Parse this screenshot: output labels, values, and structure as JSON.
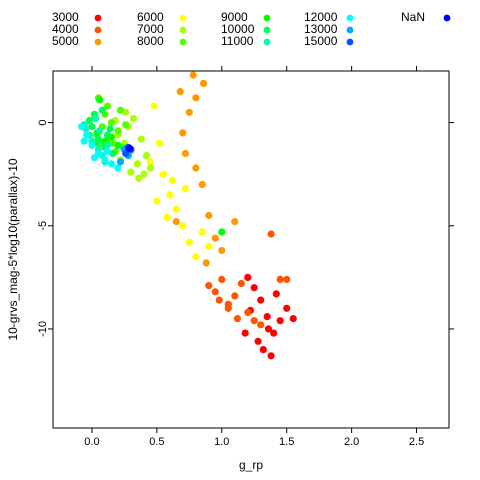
{
  "chart_data": {
    "type": "scatter",
    "xlabel": "g_rp",
    "ylabel": "10-grvs_mag-5*log10(parallax)-10",
    "xlim": [
      -0.3,
      2.75
    ],
    "ylim": [
      2.5,
      -14.8
    ],
    "x_ticks": [
      "0.0",
      "0.5",
      "1.0",
      "1.5",
      "2.0",
      "2.5"
    ],
    "y_ticks": [
      "0",
      "-5",
      "-10"
    ],
    "legend_position": "top",
    "series": [
      {
        "name": "3000",
        "color": "#FF0000",
        "points": [
          [
            1.3,
            -8.6
          ],
          [
            1.35,
            -9.4
          ],
          [
            1.4,
            -10.2
          ],
          [
            1.32,
            -11.0
          ],
          [
            1.38,
            -11.3
          ],
          [
            1.45,
            -9.6
          ],
          [
            1.5,
            -9.0
          ],
          [
            1.25,
            -8.0
          ],
          [
            1.2,
            -7.5
          ],
          [
            1.42,
            -8.3
          ],
          [
            1.28,
            -10.6
          ],
          [
            1.36,
            -10.0
          ],
          [
            1.55,
            -9.5
          ],
          [
            1.18,
            -10.2
          ],
          [
            1.22,
            -9.1
          ]
        ]
      },
      {
        "name": "4000",
        "color": "#FF5500",
        "points": [
          [
            1.0,
            -7.6
          ],
          [
            1.1,
            -8.4
          ],
          [
            1.2,
            -9.2
          ],
          [
            1.05,
            -9.0
          ],
          [
            0.95,
            -8.2
          ],
          [
            1.15,
            -7.8
          ],
          [
            1.25,
            -9.6
          ],
          [
            0.9,
            -7.9
          ],
          [
            1.05,
            -8.8
          ],
          [
            1.3,
            -9.8
          ],
          [
            1.12,
            -9.5
          ],
          [
            0.98,
            -8.6
          ],
          [
            1.45,
            -7.6
          ],
          [
            1.38,
            -5.4
          ],
          [
            1.5,
            -7.6
          ]
        ]
      },
      {
        "name": "5000",
        "color": "#FF9900",
        "points": [
          [
            0.7,
            -0.5
          ],
          [
            0.75,
            0.5
          ],
          [
            0.8,
            1.2
          ],
          [
            0.72,
            -1.5
          ],
          [
            0.85,
            -3.0
          ],
          [
            0.9,
            -4.5
          ],
          [
            0.95,
            -5.6
          ],
          [
            1.0,
            -6.2
          ],
          [
            0.78,
            2.3
          ],
          [
            0.86,
            1.9
          ],
          [
            0.8,
            -2.2
          ],
          [
            1.1,
            -4.8
          ],
          [
            0.65,
            -4.8
          ],
          [
            0.88,
            -6.8
          ],
          [
            0.68,
            1.5
          ]
        ]
      },
      {
        "name": "6000",
        "color": "#FFFF00",
        "points": [
          [
            0.55,
            -2.5
          ],
          [
            0.6,
            -3.5
          ],
          [
            0.65,
            -4.2
          ],
          [
            0.7,
            -5.0
          ],
          [
            0.75,
            -5.8
          ],
          [
            0.8,
            -6.5
          ],
          [
            0.5,
            -3.8
          ],
          [
            0.52,
            -1.0
          ],
          [
            0.58,
            -4.6
          ],
          [
            0.85,
            -5.3
          ],
          [
            0.48,
            0.8
          ],
          [
            0.62,
            -2.8
          ],
          [
            0.9,
            -6.0
          ],
          [
            0.45,
            -1.9
          ],
          [
            0.72,
            -3.2
          ]
        ]
      },
      {
        "name": "7000",
        "color": "#AAFF00",
        "points": [
          [
            0.2,
            -0.6
          ],
          [
            0.25,
            -1.0
          ],
          [
            0.3,
            -1.4
          ],
          [
            0.35,
            -2.0
          ],
          [
            0.4,
            -2.5
          ],
          [
            0.28,
            -0.2
          ],
          [
            0.32,
            0.2
          ],
          [
            0.38,
            -0.8
          ],
          [
            0.42,
            -1.6
          ],
          [
            0.22,
            -1.8
          ],
          [
            0.36,
            -2.7
          ],
          [
            0.18,
            0.1
          ],
          [
            0.45,
            -2.2
          ],
          [
            0.3,
            -2.4
          ],
          [
            0.26,
            0.5
          ]
        ]
      },
      {
        "name": "8000",
        "color": "#55FF00",
        "points": [
          [
            0.05,
            1.2
          ],
          [
            0.1,
            0.4
          ],
          [
            0.15,
            0.0
          ],
          [
            0.2,
            -0.4
          ],
          [
            0.12,
            -0.8
          ],
          [
            0.08,
            -0.2
          ],
          [
            0.16,
            -1.0
          ],
          [
            0.22,
            0.6
          ],
          [
            0.02,
            0.3
          ],
          [
            0.24,
            -1.2
          ],
          [
            0.12,
            0.8
          ],
          [
            0.04,
            -0.6
          ],
          [
            0.18,
            -1.4
          ],
          [
            0.26,
            -0.1
          ],
          [
            0.06,
            -1.1
          ]
        ]
      },
      {
        "name": "9000",
        "color": "#00FF00",
        "points": [
          [
            0.06,
            1.1
          ],
          [
            1.0,
            -5.3
          ],
          [
            0.15,
            -0.7
          ],
          [
            0.1,
            -0.9
          ],
          [
            0.2,
            -1.1
          ],
          [
            0.04,
            -0.5
          ]
        ]
      },
      {
        "name": "10000",
        "color": "#00FF55",
        "points": [
          [
            0.0,
            -0.2
          ],
          [
            0.02,
            0.4
          ],
          [
            0.05,
            -0.8
          ],
          [
            0.1,
            -1.2
          ],
          [
            0.14,
            -0.3
          ],
          [
            -0.02,
            0.1
          ],
          [
            0.08,
            0.6
          ],
          [
            0.16,
            -1.5
          ],
          [
            0.04,
            -1.0
          ],
          [
            0.12,
            -0.6
          ]
        ]
      },
      {
        "name": "11000",
        "color": "#00FFAA",
        "points": [
          [
            -0.05,
            -0.3
          ],
          [
            0.0,
            -0.9
          ],
          [
            0.05,
            -1.3
          ],
          [
            0.08,
            -1.6
          ],
          [
            -0.02,
            -0.6
          ],
          [
            0.03,
            0.2
          ],
          [
            0.1,
            -1.9
          ],
          [
            0.12,
            -1.1
          ],
          [
            -0.06,
            -0.1
          ],
          [
            0.06,
            -0.4
          ]
        ]
      },
      {
        "name": "12000",
        "color": "#00FFFF",
        "points": [
          [
            -0.08,
            -0.2
          ],
          [
            -0.04,
            -0.6
          ],
          [
            0.0,
            -1.1
          ],
          [
            0.05,
            -1.5
          ],
          [
            0.1,
            -1.8
          ],
          [
            0.15,
            -2.0
          ],
          [
            0.2,
            -2.2
          ],
          [
            -0.06,
            -0.9
          ],
          [
            0.02,
            -1.7
          ],
          [
            0.12,
            -1.4
          ]
        ]
      },
      {
        "name": "13000",
        "color": "#00AAFF",
        "points": [
          [
            0.22,
            -1.9
          ],
          [
            0.25,
            -1.3
          ],
          [
            0.28,
            -1.6
          ]
        ]
      },
      {
        "name": "15000",
        "color": "#0055FF",
        "points": [
          [
            0.28,
            -1.2
          ],
          [
            0.3,
            -1.3
          ],
          [
            0.26,
            -1.5
          ]
        ]
      },
      {
        "name": "NaN",
        "color": "#0000FF",
        "points": [
          [
            0.29,
            -1.25
          ]
        ]
      }
    ]
  }
}
